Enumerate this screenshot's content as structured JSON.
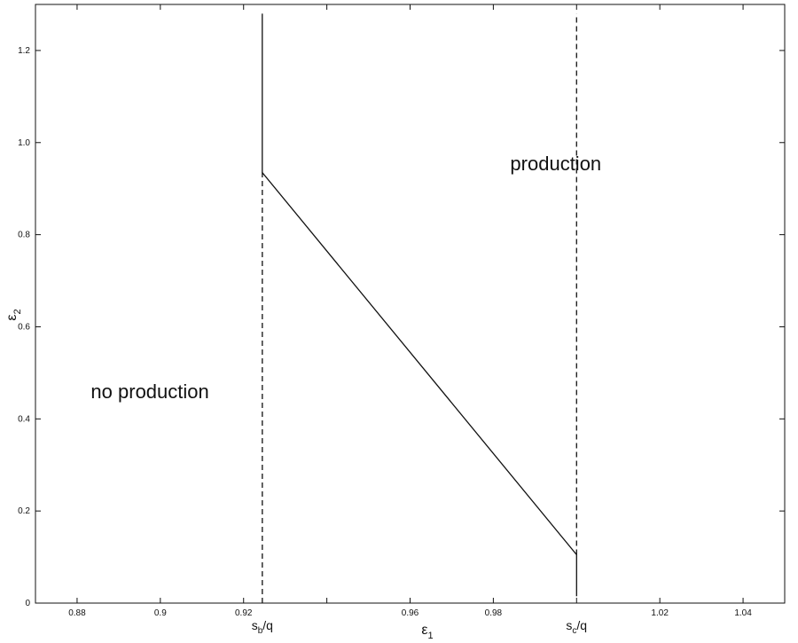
{
  "chart_data": {
    "type": "line",
    "xlabel": "ε1",
    "ylabel": "ε2",
    "xlim": [
      0.87,
      1.05
    ],
    "ylim": [
      0,
      1.3
    ],
    "x_ticks": [
      "0.88",
      "0.9",
      "0.92",
      "0.96",
      "0.98",
      "1.02",
      "1.04"
    ],
    "y_ticks": [
      "0",
      "0.2",
      "0.4",
      "0.6",
      "0.8",
      "1.0",
      "1.2"
    ],
    "tick_marks_x": [
      0.88,
      0.9,
      0.92,
      0.94,
      0.96,
      0.98,
      1.0,
      1.02,
      1.04
    ],
    "tick_marks_y": [
      0,
      0.2,
      0.4,
      0.6,
      0.8,
      1.0,
      1.2
    ],
    "x_markers": [
      {
        "x": 0.9245,
        "label": "s",
        "sub": "b",
        "suffix": "/q"
      },
      {
        "x": 1.0,
        "label": "s",
        "sub": "c",
        "suffix": "/q"
      }
    ],
    "series": [
      {
        "style": "solid",
        "points": [
          [
            0.9245,
            1.28
          ],
          [
            0.9245,
            0.935
          ],
          [
            1.0,
            0.105
          ],
          [
            1.0,
            0.015
          ]
        ]
      }
    ],
    "dashed_lines": [
      {
        "x": 0.9245,
        "y": [
          0,
          0.935
        ]
      },
      {
        "x": 1.0,
        "y": [
          0.105,
          1.28
        ]
      }
    ],
    "annotations": [
      {
        "text": "no production",
        "x": 0.8975,
        "y": 0.445
      },
      {
        "text": "production",
        "x": 0.995,
        "y": 0.94
      }
    ],
    "grid": false
  }
}
